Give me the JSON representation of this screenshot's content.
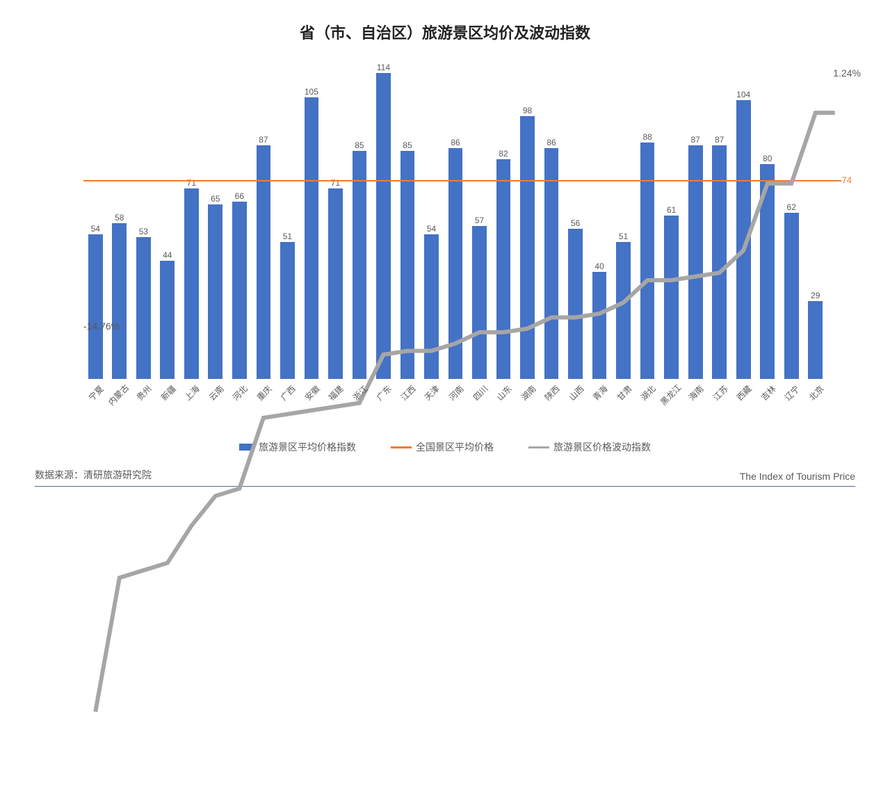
{
  "title": "省（市、自治区）旅游景区均价及波动指数",
  "source_label": "数据来源：清研旅游研究院",
  "footer_right": "The Index of Tourism Price",
  "colors": {
    "bar": "#4472c4",
    "avg_line": "#ed7d31",
    "vol_line": "#a6a6a6",
    "text": "#595959",
    "background": "#ffffff",
    "footer_border": "#516b8e"
  },
  "chart": {
    "type": "bar+line",
    "bar_ymax": 120,
    "bar_ymin": 0,
    "avg_value": 74,
    "avg_label": "74",
    "vol_start_label": "-14.76%",
    "vol_end_label": "1.24%",
    "vol_start_y": 0.88,
    "legend": {
      "bar": "旅游景区平均价格指数",
      "avg": "全国景区平均价格",
      "vol": "旅游景区价格波动指数"
    },
    "categories": [
      "宁夏",
      "内蒙古",
      "贵州",
      "新疆",
      "上海",
      "云南",
      "河北",
      "重庆",
      "广西",
      "安徽",
      "福建",
      "浙江",
      "广东",
      "江西",
      "天津",
      "河南",
      "四川",
      "山东",
      "湖南",
      "陕西",
      "山西",
      "青海",
      "甘肃",
      "湖北",
      "黑龙江",
      "海南",
      "江苏",
      "西藏",
      "吉林",
      "辽宁",
      "北京"
    ],
    "values": [
      54,
      58,
      53,
      44,
      71,
      65,
      66,
      87,
      51,
      105,
      71,
      85,
      114,
      85,
      54,
      86,
      57,
      82,
      98,
      86,
      56,
      40,
      51,
      88,
      61,
      87,
      87,
      104,
      80,
      62,
      29
    ],
    "volatility_y": [
      0.88,
      0.7,
      0.69,
      0.68,
      0.63,
      0.59,
      0.58,
      0.485,
      0.48,
      0.475,
      0.47,
      0.465,
      0.4,
      0.395,
      0.395,
      0.385,
      0.37,
      0.37,
      0.365,
      0.35,
      0.35,
      0.345,
      0.33,
      0.3,
      0.3,
      0.295,
      0.29,
      0.26,
      0.17,
      0.17,
      0.075
    ]
  }
}
